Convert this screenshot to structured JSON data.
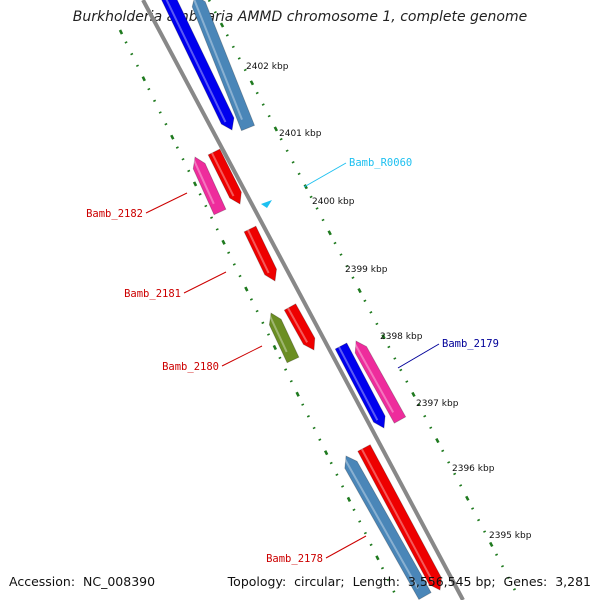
{
  "title": "Burkholderia ambifaria AMMD chromosome 1, complete genome",
  "footer": {
    "accession_label": "Accession:",
    "accession": "NC_008390",
    "topology_label": "Topology:",
    "topology": "circular;",
    "length_label": "Length:",
    "length": "3,556,545 bp;",
    "genes_label": "Genes:",
    "genes": "3,281"
  },
  "ticks": [
    "2402 kbp",
    "2401 kbp",
    "2400 kbp",
    "2399 kbp",
    "2398 kbp",
    "2397 kbp",
    "2396 kbp",
    "2395 kbp"
  ],
  "colors": {
    "blue": "#0000ee",
    "steel_blue": "#4a86b8",
    "red": "#ee0000",
    "pink": "#ee2c9c",
    "olive": "#6b8e23",
    "cyan": "#1ec0f0",
    "backbone": "#888888",
    "dots": "#1f7a1f"
  },
  "gene_labels": {
    "r0060": "Bamb_R0060",
    "b2182": "Bamb_2182",
    "b2181": "Bamb_2181",
    "b2180": "Bamb_2180",
    "b2179": "Bamb_2179",
    "b2178": "Bamb_2178"
  }
}
